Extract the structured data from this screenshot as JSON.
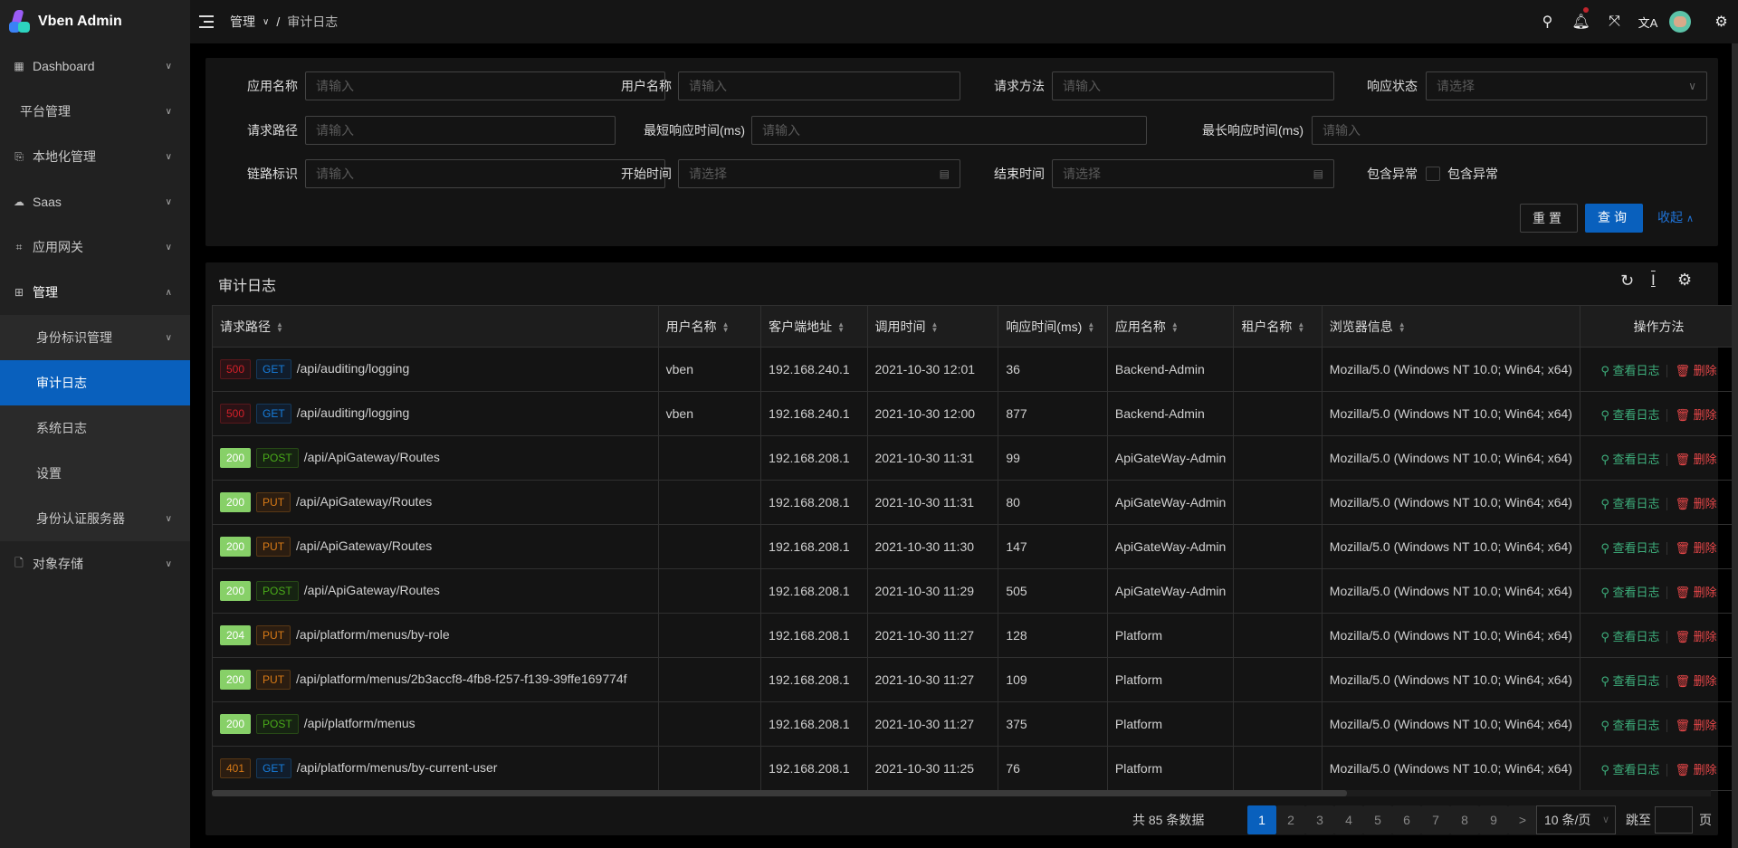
{
  "app": {
    "title": "Vben Admin"
  },
  "sidebar": {
    "items": [
      {
        "label": "Dashboard",
        "icon": "dashboard-icon",
        "chev": "⌄"
      },
      {
        "label": "平台管理",
        "icon": "",
        "chev": "⌄"
      },
      {
        "label": "本地化管理",
        "icon": "localization-icon",
        "chev": "⌄"
      },
      {
        "label": "Saas",
        "icon": "saas-icon",
        "chev": "⌄"
      },
      {
        "label": "应用网关",
        "icon": "gateway-icon",
        "chev": "⌄"
      },
      {
        "label": "管理",
        "icon": "manage-icon",
        "chev": "⌃"
      },
      {
        "label": "身份标识管理",
        "sub": true,
        "chev": "⌄"
      },
      {
        "label": "审计日志",
        "sub": true,
        "active": true
      },
      {
        "label": "系统日志",
        "sub": true
      },
      {
        "label": "设置",
        "sub": true
      },
      {
        "label": "身份认证服务器",
        "sub": true,
        "chev": "⌄"
      },
      {
        "label": "对象存储",
        "icon": "file-icon",
        "chev": "⌄"
      }
    ]
  },
  "header": {
    "breadcrumb": [
      "管理",
      "审计日志"
    ],
    "separator": "/"
  },
  "form": {
    "app_name": {
      "label": "应用名称",
      "placeholder": "请输入"
    },
    "user_name": {
      "label": "用户名称",
      "placeholder": "请输入"
    },
    "method": {
      "label": "请求方法",
      "placeholder": "请输入"
    },
    "status": {
      "label": "响应状态",
      "placeholder": "请选择"
    },
    "path": {
      "label": "请求路径",
      "placeholder": "请输入"
    },
    "min_time": {
      "label": "最短响应时间(ms)",
      "placeholder": "请输入"
    },
    "max_time": {
      "label": "最长响应时间(ms)",
      "placeholder": "请输入"
    },
    "trace": {
      "label": "链路标识",
      "placeholder": "请输入"
    },
    "start": {
      "label": "开始时间",
      "placeholder": "请选择"
    },
    "end": {
      "label": "结束时间",
      "placeholder": "请选择"
    },
    "has_exception": {
      "label": "包含异常",
      "checkbox_label": "包含异常",
      "checked": false
    },
    "reset": "重置",
    "query": "查询",
    "collapse": "收起"
  },
  "table": {
    "title": "审计日志",
    "columns": [
      "请求路径",
      "用户名称",
      "客户端地址",
      "调用时间",
      "响应时间(ms)",
      "应用名称",
      "租户名称",
      "浏览器信息",
      "操作方法"
    ],
    "actions": {
      "view": "查看日志",
      "delete": "删除"
    },
    "rows": [
      {
        "status": "500",
        "method": "GET",
        "path": "/api/auditing/logging",
        "user": "vben",
        "ip": "192.168.240.1",
        "time": "2021-10-30 12:01",
        "ms": "36",
        "app": "Backend-Admin",
        "tenant": "",
        "browser": "Mozilla/5.0 (Windows NT 10.0; Win64; x64)"
      },
      {
        "status": "500",
        "method": "GET",
        "path": "/api/auditing/logging",
        "user": "vben",
        "ip": "192.168.240.1",
        "time": "2021-10-30 12:00",
        "ms": "877",
        "app": "Backend-Admin",
        "tenant": "",
        "browser": "Mozilla/5.0 (Windows NT 10.0; Win64; x64)"
      },
      {
        "status": "200",
        "method": "POST",
        "path": "/api/ApiGateway/Routes",
        "user": "",
        "ip": "192.168.208.1",
        "time": "2021-10-30 11:31",
        "ms": "99",
        "app": "ApiGateWay-Admin",
        "tenant": "",
        "browser": "Mozilla/5.0 (Windows NT 10.0; Win64; x64)"
      },
      {
        "status": "200",
        "method": "PUT",
        "path": "/api/ApiGateway/Routes",
        "user": "",
        "ip": "192.168.208.1",
        "time": "2021-10-30 11:31",
        "ms": "80",
        "app": "ApiGateWay-Admin",
        "tenant": "",
        "browser": "Mozilla/5.0 (Windows NT 10.0; Win64; x64)"
      },
      {
        "status": "200",
        "method": "PUT",
        "path": "/api/ApiGateway/Routes",
        "user": "",
        "ip": "192.168.208.1",
        "time": "2021-10-30 11:30",
        "ms": "147",
        "app": "ApiGateWay-Admin",
        "tenant": "",
        "browser": "Mozilla/5.0 (Windows NT 10.0; Win64; x64)"
      },
      {
        "status": "200",
        "method": "POST",
        "path": "/api/ApiGateway/Routes",
        "user": "",
        "ip": "192.168.208.1",
        "time": "2021-10-30 11:29",
        "ms": "505",
        "app": "ApiGateWay-Admin",
        "tenant": "",
        "browser": "Mozilla/5.0 (Windows NT 10.0; Win64; x64)"
      },
      {
        "status": "204",
        "method": "PUT",
        "path": "/api/platform/menus/by-role",
        "user": "",
        "ip": "192.168.208.1",
        "time": "2021-10-30 11:27",
        "ms": "128",
        "app": "Platform",
        "tenant": "",
        "browser": "Mozilla/5.0 (Windows NT 10.0; Win64; x64)"
      },
      {
        "status": "200",
        "method": "PUT",
        "path": "/api/platform/menus/2b3accf8-4fb8-f257-f139-39ffe169774f",
        "user": "",
        "ip": "192.168.208.1",
        "time": "2021-10-30 11:27",
        "ms": "109",
        "app": "Platform",
        "tenant": "",
        "browser": "Mozilla/5.0 (Windows NT 10.0; Win64; x64)"
      },
      {
        "status": "200",
        "method": "POST",
        "path": "/api/platform/menus",
        "user": "",
        "ip": "192.168.208.1",
        "time": "2021-10-30 11:27",
        "ms": "375",
        "app": "Platform",
        "tenant": "",
        "browser": "Mozilla/5.0 (Windows NT 10.0; Win64; x64)"
      },
      {
        "status": "401",
        "method": "GET",
        "path": "/api/platform/menus/by-current-user",
        "user": "",
        "ip": "192.168.208.1",
        "time": "2021-10-30 11:25",
        "ms": "76",
        "app": "Platform",
        "tenant": "",
        "browser": "Mozilla/5.0 (Windows NT 10.0; Win64; x64)"
      }
    ]
  },
  "pagination": {
    "total": "共 85 条数据",
    "pages": [
      "1",
      "2",
      "3",
      "4",
      "5",
      "6",
      "7",
      "8",
      "9"
    ],
    "current": "1",
    "page_size": "10 条/页",
    "jump_label": "跳至",
    "page_suffix": "页"
  },
  "colors": {
    "primary": "#0960bd",
    "success": "#87d068",
    "view": "#3eaf7c",
    "delete": "#e84749"
  }
}
